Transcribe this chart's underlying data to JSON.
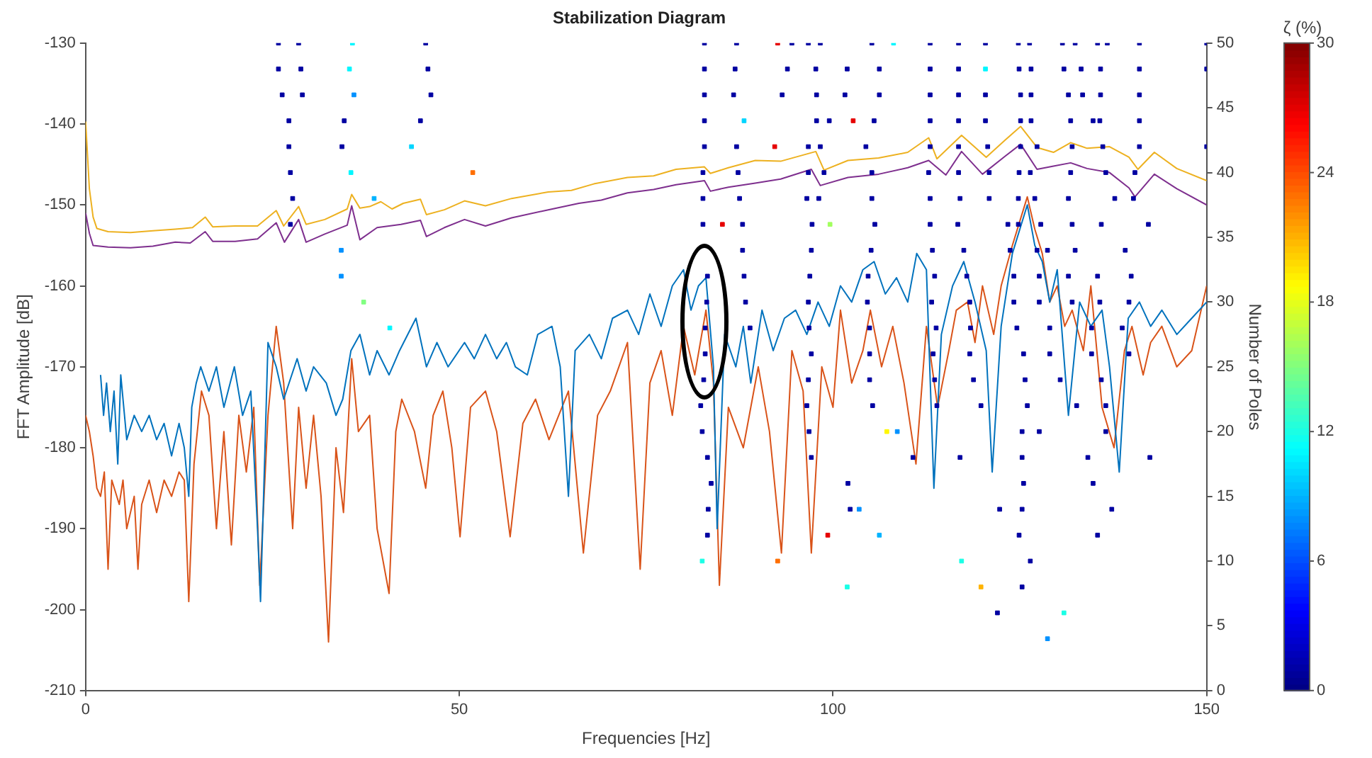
{
  "chart_data": {
    "type": "line",
    "title": "Stabilization Diagram",
    "xlabel": "Frequencies [Hz]",
    "ylabel": "FFT Amplitude [dB]",
    "y2label": "Number of Poles",
    "clabel": "ζ (%)",
    "xlim": [
      0,
      150
    ],
    "xticks": [
      0,
      50,
      100,
      150
    ],
    "ylim": [
      -210,
      -130
    ],
    "yticks": [
      -210,
      -200,
      -190,
      -180,
      -170,
      -160,
      -150,
      -140,
      -130
    ],
    "y2lim": [
      0,
      50
    ],
    "y2ticks": [
      0,
      5,
      10,
      15,
      20,
      25,
      30,
      35,
      40,
      45,
      50
    ],
    "clim": [
      0,
      30
    ],
    "cticks": [
      0,
      6,
      12,
      18,
      24,
      30
    ],
    "grid": false,
    "legend": false,
    "series": [
      {
        "color": "#edb120",
        "x": [
          0,
          0.5,
          1,
          1.5,
          3,
          6,
          9,
          12,
          14.3,
          16,
          17,
          20,
          23,
          25.5,
          26.5,
          28.5,
          29.5,
          32,
          35,
          35.6,
          36.7,
          38,
          39.5,
          41,
          42.5,
          44.8,
          45.6,
          48,
          50.7,
          53.5,
          57,
          61.9,
          65,
          68,
          72.5,
          76,
          79,
          82.8,
          83.6,
          86,
          89.6,
          93,
          97.7,
          98.8,
          102,
          106.1,
          110,
          112.8,
          113.9,
          117.2,
          120.5,
          123,
          125.1,
          127.3,
          129.5,
          131.8,
          134,
          137,
          139.6,
          140.8,
          143,
          146,
          150
        ],
        "values": [
          -139.7,
          -148,
          -151.5,
          -152.9,
          -153.3,
          -153.4,
          -153.2,
          -153,
          -152.8,
          -151.5,
          -152.7,
          -152.6,
          -152.6,
          -150.7,
          -152.6,
          -150.2,
          -152.4,
          -151.8,
          -150.5,
          -148.7,
          -150.4,
          -150.2,
          -149.6,
          -150.5,
          -149.8,
          -149.3,
          -151.2,
          -150.6,
          -149.5,
          -150.1,
          -149.2,
          -148.4,
          -148.2,
          -147.4,
          -146.6,
          -146.4,
          -145.6,
          -145.3,
          -146.1,
          -145.4,
          -144.5,
          -144.6,
          -143.4,
          -145.7,
          -144.5,
          -144.2,
          -143.5,
          -141.7,
          -144.3,
          -141.4,
          -144.1,
          -142,
          -140.3,
          -142.9,
          -143.5,
          -142.3,
          -143,
          -142.8,
          -144.1,
          -145.6,
          -143.5,
          -145.5,
          -147
        ]
      },
      {
        "color": "#7e2f8e",
        "x": [
          0,
          0.5,
          1,
          3,
          6,
          9,
          12,
          14,
          16,
          17,
          20,
          23,
          25.5,
          26.6,
          28.5,
          29.5,
          32,
          35,
          35.6,
          36.7,
          39,
          42.2,
          44.8,
          45.6,
          48,
          50.7,
          53.5,
          57,
          61.9,
          66,
          69,
          72.5,
          76,
          79,
          82.8,
          83.6,
          86,
          89.6,
          93,
          97.1,
          98.3,
          102,
          106.1,
          110,
          112.8,
          115.1,
          117.2,
          120,
          123,
          125.1,
          127.3,
          129.5,
          131.8,
          134,
          137,
          139.6,
          140.4,
          143,
          146,
          150
        ],
        "values": [
          -151,
          -153.5,
          -155,
          -155.2,
          -155.3,
          -155.1,
          -154.6,
          -154.7,
          -153.3,
          -154.5,
          -154.5,
          -154.2,
          -152.2,
          -154.6,
          -151.8,
          -154.6,
          -153.6,
          -152.5,
          -150.1,
          -154.3,
          -152.8,
          -152.4,
          -151.9,
          -153.9,
          -152.8,
          -151.8,
          -152.6,
          -151.6,
          -150.6,
          -149.8,
          -149.4,
          -148.5,
          -148.1,
          -147.5,
          -147,
          -148.3,
          -147.8,
          -147.3,
          -146.8,
          -145.6,
          -147.6,
          -146.6,
          -146.2,
          -145.4,
          -144.5,
          -146.3,
          -143.4,
          -146.2,
          -144,
          -142.5,
          -145.6,
          -145.2,
          -144.8,
          -145.5,
          -146,
          -147.9,
          -149,
          -146.2,
          -148,
          -150
        ]
      },
      {
        "color": "#0072bd",
        "x": [
          2,
          2.4,
          2.8,
          3.3,
          3.8,
          4.3,
          4.7,
          5.5,
          6.5,
          7.5,
          8.5,
          9.5,
          10.5,
          11.5,
          12.5,
          13.2,
          13.8,
          14.2,
          14.8,
          15.4,
          16.5,
          17.5,
          18.5,
          19.9,
          21,
          22.1,
          23,
          23.4,
          24,
          24.4,
          25.5,
          26.5,
          28.3,
          29.5,
          30.5,
          32.2,
          33.5,
          34.4,
          35.5,
          36.7,
          38,
          39,
          40.6,
          42,
          44.2,
          45.6,
          47,
          48.5,
          50.7,
          52,
          53.5,
          55,
          56.3,
          57.5,
          59.1,
          60.5,
          62.4,
          63.5,
          64.6,
          65.5,
          67.4,
          69,
          70.5,
          72.5,
          74,
          75.5,
          77,
          78.5,
          80,
          81,
          82,
          83,
          84,
          84.5,
          85.5,
          87,
          88,
          89,
          90.5,
          92,
          93.5,
          95,
          96.5,
          98,
          99.5,
          101,
          102.5,
          104,
          105.5,
          107,
          108.5,
          110,
          111.2,
          112.5,
          113.5,
          114.5,
          116,
          117.5,
          119,
          120.5,
          121.3,
          122.5,
          124,
          125,
          126,
          127,
          128,
          129,
          130,
          131.5,
          133,
          134.5,
          136,
          137,
          138.3,
          139.5,
          141,
          142.5,
          144,
          146,
          148,
          150
        ],
        "values": [
          -171,
          -176,
          -172,
          -178,
          -173,
          -182,
          -171,
          -179,
          -176,
          -178,
          -176,
          -179,
          -177,
          -181,
          -177,
          -180,
          -186,
          -175,
          -172,
          -170,
          -173,
          -170,
          -175,
          -170,
          -176,
          -173,
          -190,
          -199,
          -180,
          -167,
          -170,
          -174,
          -169,
          -173,
          -170,
          -172,
          -176,
          -174,
          -168,
          -166,
          -171,
          -168,
          -171,
          -168,
          -164,
          -170,
          -167,
          -170,
          -167,
          -169,
          -166,
          -169,
          -167,
          -170,
          -171,
          -166,
          -165,
          -170,
          -186,
          -168,
          -166,
          -169,
          -164,
          -163,
          -166,
          -161,
          -165,
          -160,
          -158,
          -163,
          -160,
          -159,
          -170,
          -190,
          -166,
          -170,
          -165,
          -172,
          -163,
          -168,
          -164,
          -163,
          -166,
          -162,
          -165,
          -160,
          -162,
          -158,
          -157,
          -161,
          -159,
          -162,
          -156,
          -158,
          -185,
          -166,
          -160,
          -157,
          -162,
          -168,
          -183,
          -165,
          -156,
          -153,
          -150,
          -155,
          -157,
          -162,
          -158,
          -176,
          -162,
          -165,
          -163,
          -170,
          -183,
          -164,
          -162,
          -165,
          -163,
          -166,
          -164,
          -162
        ]
      },
      {
        "color": "#d95319",
        "x": [
          0,
          0.5,
          1,
          1.5,
          2,
          2.5,
          3,
          3.5,
          4.5,
          5,
          5.5,
          6.5,
          7,
          7.5,
          8.5,
          9.5,
          10.5,
          11.5,
          12.5,
          13.2,
          13.8,
          14.5,
          15.5,
          16.5,
          17.5,
          18.5,
          19.5,
          20.5,
          21.5,
          22.5,
          23.3,
          24.4,
          25.5,
          26.5,
          27.7,
          28.5,
          29.5,
          30.5,
          31.5,
          32.5,
          33.5,
          34.5,
          35.6,
          36.5,
          38,
          39,
          40.6,
          41.5,
          42.3,
          44,
          45.5,
          46.5,
          47.8,
          49,
          50.1,
          51.5,
          53.5,
          55,
          56.8,
          58.5,
          60.2,
          62,
          64.6,
          66.6,
          68.5,
          70.2,
          72.5,
          74.2,
          75.5,
          77,
          78.5,
          80,
          81.5,
          83,
          84,
          84.8,
          86,
          88,
          90,
          91.5,
          93.1,
          94.5,
          96,
          97.1,
          98.5,
          100,
          101,
          102.5,
          104,
          105,
          106.5,
          108,
          109.5,
          111.1,
          112.5,
          114,
          115.5,
          116.5,
          118,
          119,
          120,
          121.5,
          122.5,
          124,
          125,
          126,
          127,
          128,
          129,
          130,
          131,
          132,
          133.5,
          134.5,
          136,
          137.6,
          139,
          140,
          141.5,
          142.5,
          144,
          146,
          148,
          150
        ],
        "values": [
          -176,
          -178,
          -181,
          -185,
          -186,
          -183,
          -195,
          -184,
          -187,
          -184,
          -190,
          -186,
          -195,
          -187,
          -184,
          -188,
          -184,
          -186,
          -183,
          -184,
          -199,
          -182,
          -173,
          -176,
          -190,
          -178,
          -192,
          -176,
          -183,
          -175,
          -197,
          -176,
          -165,
          -172,
          -190,
          -175,
          -185,
          -176,
          -186,
          -204,
          -180,
          -188,
          -169,
          -178,
          -176,
          -190,
          -198,
          -178,
          -174,
          -178,
          -185,
          -176,
          -173,
          -180,
          -191,
          -175,
          -173,
          -178,
          -191,
          -177,
          -174,
          -179,
          -173,
          -193,
          -176,
          -173,
          -167,
          -195,
          -172,
          -168,
          -176,
          -165,
          -171,
          -163,
          -172,
          -197,
          -175,
          -180,
          -170,
          -178,
          -193,
          -168,
          -173,
          -193,
          -170,
          -175,
          -163,
          -172,
          -168,
          -163,
          -170,
          -165,
          -172,
          -182,
          -165,
          -175,
          -168,
          -163,
          -162,
          -167,
          -160,
          -166,
          -160,
          -155,
          -152,
          -149,
          -153,
          -156,
          -162,
          -160,
          -165,
          -163,
          -168,
          -160,
          -175,
          -180,
          -168,
          -165,
          -171,
          -167,
          -165,
          -170,
          -168,
          -160
        ]
      },
      {
        "type": "scatter",
        "axis": "y2",
        "marker": "square",
        "x": [
          25.8,
          28.5,
          35.7,
          45.5,
          82.8,
          87.1,
          92.6,
          94.5,
          96.7,
          98.3,
          105.2,
          108.1,
          113.0,
          116.8,
          120.4,
          124.8,
          126.3,
          130.7,
          132.4,
          135.4,
          136.7,
          141.0,
          150
        ],
        "values": [
          50,
          50,
          50,
          50,
          50,
          50,
          50,
          50,
          50,
          50,
          50,
          50,
          50,
          50,
          50,
          50,
          50,
          50,
          50,
          50,
          50,
          50,
          50
        ],
        "colors": [
          "#0000a1",
          "#0000a1",
          "#00f7ff",
          "#0000a1",
          "#0000a1",
          "#0000a1",
          "#e60000",
          "#0000a1",
          "#0000a1",
          "#0000a1",
          "#0000a1",
          "#00f7ff",
          "#0000a1",
          "#0000a1",
          "#0000a1",
          "#0000a1",
          "#0000a1",
          "#0000a1",
          "#0000a1",
          "#0000a1",
          "#0000a1",
          "#0000a1",
          "#0000a1"
        ],
        "cvalues": [
          1,
          1,
          11,
          1,
          1,
          1,
          27,
          1,
          1,
          1,
          1,
          11,
          1,
          1,
          1,
          1,
          1,
          1,
          1,
          1,
          1,
          1,
          1
        ]
      },
      {
        "type": "scatter",
        "axis": "y2",
        "marker": "square",
        "x": [
          25.8,
          28.8,
          35.3,
          45.8,
          82.8,
          86.9,
          93.9,
          97.7,
          101.9,
          106.2,
          113.0,
          116.8,
          120.4,
          124.9,
          126.5,
          130.9,
          133.2,
          135.8,
          141.0,
          150
        ],
        "values": [
          48,
          48,
          48,
          48,
          48,
          48,
          48,
          48,
          48,
          48,
          48,
          48,
          48,
          48,
          48,
          48,
          48,
          48,
          48,
          48
        ],
        "colors": [
          "#0000a1",
          "#0000a1",
          "#00f7ff",
          "#0000a1",
          "#0000a1",
          "#0000a1",
          "#0000a1",
          "#0000a1",
          "#0000a1",
          "#0000a1",
          "#0000a1",
          "#0000a1",
          "#00f7ff",
          "#0000a1",
          "#0000a1",
          "#0000a1",
          "#0000a1",
          "#0000a1",
          "#0000a1",
          "#0000a1"
        ],
        "cvalues": [
          1,
          1,
          11,
          1,
          1,
          1,
          1,
          1,
          1,
          1,
          1,
          1,
          11,
          1,
          1,
          1,
          1,
          1,
          1,
          1
        ]
      },
      {
        "type": "scatter",
        "axis": "y2",
        "marker": "square",
        "x": [
          26.3,
          29.0,
          35.9,
          46.2,
          82.8,
          86.7,
          93.2,
          97.8,
          101.6,
          106.2,
          113.0,
          116.8,
          120.4,
          125.1,
          126.5,
          131.5,
          133.4,
          135.8,
          141.0
        ],
        "values": [
          46,
          46,
          46,
          46,
          46,
          46,
          46,
          46,
          46,
          46,
          46,
          46,
          46,
          46,
          46,
          46,
          46,
          46,
          46
        ],
        "colors": [
          "#0000a1",
          "#0000a1",
          "#0091ff",
          "#0000a1",
          "#0000a1",
          "#0000a1",
          "#0000a1",
          "#0000a1",
          "#0000a1",
          "#0000a1",
          "#0000a1",
          "#0000a1",
          "#0000a1",
          "#0000a1",
          "#0000a1",
          "#0000a1",
          "#0000a1",
          "#0000a1",
          "#0000a1"
        ],
        "cvalues": [
          1,
          1,
          8,
          1,
          1,
          1,
          1,
          1,
          1,
          1,
          1,
          1,
          1,
          1,
          1,
          1,
          1,
          1,
          1
        ]
      },
      {
        "type": "scatter",
        "axis": "y2",
        "marker": "square",
        "x": [
          27.2,
          34.6,
          44.8,
          82.8,
          88.1,
          97.8,
          99.5,
          102.7,
          105.5,
          113.0,
          116.8,
          120.4,
          125.1,
          126.5,
          131.8,
          134.8,
          135.7,
          141.0
        ],
        "values": [
          44,
          44,
          44,
          44,
          44,
          44,
          44,
          44,
          44,
          44,
          44,
          44,
          44,
          44,
          44,
          44,
          44,
          44
        ],
        "colors": [
          "#0000a1",
          "#0000a1",
          "#0000a1",
          "#0000a1",
          "#00d5ff",
          "#0000a1",
          "#0000a1",
          "#e60000",
          "#0000a1",
          "#0000a1",
          "#0000a1",
          "#0000a1",
          "#0000a1",
          "#0000a1",
          "#0000a1",
          "#0000a1",
          "#0000a1",
          "#0000a1"
        ],
        "cvalues": [
          1,
          1,
          1,
          1,
          10,
          1,
          1,
          27,
          1,
          1,
          1,
          1,
          1,
          1,
          1,
          1,
          1,
          1
        ]
      },
      {
        "type": "scatter",
        "axis": "y2",
        "marker": "square",
        "x": [
          27.2,
          34.3,
          43.6,
          82.8,
          87.1,
          92.2,
          96.7,
          98.3,
          104.4,
          113.0,
          116.8,
          120.7,
          125.1,
          127.3,
          132.0,
          136.1,
          141.0,
          150
        ],
        "values": [
          42,
          42,
          42,
          42,
          42,
          42,
          42,
          42,
          42,
          42,
          42,
          42,
          42,
          42,
          42,
          42,
          42,
          42
        ],
        "colors": [
          "#0000a1",
          "#0000a1",
          "#00d5ff",
          "#0000a1",
          "#0000a1",
          "#e60000",
          "#0000a1",
          "#0000a1",
          "#0000a1",
          "#0000a1",
          "#0000a1",
          "#0000a1",
          "#0000a1",
          "#0000a1",
          "#0000a1",
          "#0000a1",
          "#0000a1",
          "#0000a1"
        ],
        "cvalues": [
          1,
          1,
          10,
          1,
          1,
          27,
          1,
          1,
          1,
          1,
          1,
          1,
          1,
          1,
          1,
          1,
          1,
          1
        ]
      },
      {
        "type": "scatter",
        "axis": "y2",
        "marker": "square",
        "x": [
          27.4,
          35.5,
          51.8,
          82.6,
          87.3,
          96.7,
          98.8,
          105.2,
          112.8,
          116.8,
          120.9,
          124.9,
          126.4,
          131.8,
          136.5,
          140.4
        ],
        "values": [
          40,
          40,
          40,
          40,
          40,
          40,
          40,
          40,
          40,
          40,
          40,
          40,
          40,
          40,
          40,
          40
        ],
        "colors": [
          "#0000a1",
          "#00f7ff",
          "#ff6e00",
          "#0000a1",
          "#0000a1",
          "#0000a1",
          "#0000a1",
          "#0000a1",
          "#0000a1",
          "#0000a1",
          "#0000a1",
          "#0000a1",
          "#0000a1",
          "#0000a1",
          "#0000a1",
          "#0000a1"
        ],
        "cvalues": [
          1,
          11,
          23,
          1,
          1,
          1,
          1,
          1,
          1,
          1,
          1,
          1,
          1,
          1,
          1,
          1
        ]
      },
      {
        "type": "scatter",
        "axis": "y2",
        "marker": "square",
        "x": [
          27.7,
          38.6,
          82.6,
          87.5,
          96.5,
          98.1,
          105.2,
          113.0,
          117.0,
          120.9,
          124.8,
          127.0,
          131.5,
          137.7,
          140.2
        ],
        "values": [
          38,
          38,
          38,
          38,
          38,
          38,
          38,
          38,
          38,
          38,
          38,
          38,
          38,
          38,
          38
        ],
        "colors": [
          "#0000a1",
          "#00b3ff",
          "#0000a1",
          "#0000a1",
          "#0000a1",
          "#0000a1",
          "#0000a1",
          "#0000a1",
          "#0000a1",
          "#0000a1",
          "#0000a1",
          "#0000a1",
          "#0000a1",
          "#0000a1",
          "#0000a1"
        ],
        "cvalues": [
          1,
          9,
          1,
          1,
          1,
          1,
          1,
          1,
          1,
          1,
          1,
          1,
          1,
          1,
          1
        ]
      },
      {
        "type": "scatter",
        "axis": "y2",
        "marker": "square",
        "x": [
          27.4,
          82.6,
          85.2,
          87.9,
          97.2,
          99.6,
          105.6,
          113.0,
          116.7,
          123.4,
          124.8,
          127.8,
          132.0,
          135.9,
          142.2
        ],
        "values": [
          36,
          36,
          36,
          36,
          36,
          36,
          36,
          36,
          36,
          36,
          36,
          36,
          36,
          36,
          36
        ],
        "colors": [
          "#0000a1",
          "#0000a1",
          "#e60000",
          "#0000a1",
          "#0000a1",
          "#a1ff5e",
          "#0000a1",
          "#0000a1",
          "#0000a1",
          "#0000a1",
          "#0000a1",
          "#0000a1",
          "#0000a1",
          "#0000a1",
          "#0000a1"
        ],
        "cvalues": [
          1,
          1,
          27,
          1,
          1,
          16,
          1,
          1,
          1,
          1,
          1,
          1,
          1,
          1,
          1
        ]
      },
      {
        "type": "scatter",
        "axis": "y2",
        "marker": "square",
        "x": [
          34.2,
          87.9,
          97.1,
          105.1,
          113.3,
          117.5,
          123.7,
          127.3,
          128.7,
          132.4,
          139.1
        ],
        "values": [
          34,
          34,
          34,
          34,
          34,
          34,
          34,
          34,
          34,
          34,
          34
        ],
        "colors": [
          "#0091ff",
          "#0000a1",
          "#0000a1",
          "#0000a1",
          "#0000a1",
          "#0000a1",
          "#0000a1",
          "#0000a1",
          "#0000a1",
          "#0000a1",
          "#0000a1"
        ],
        "cvalues": [
          8,
          1,
          1,
          1,
          1,
          1,
          1,
          1,
          1,
          1,
          1
        ]
      },
      {
        "type": "scatter",
        "axis": "y2",
        "marker": "square",
        "x": [
          34.2,
          83.2,
          88.1,
          96.9,
          104.7,
          113.6,
          117.9,
          124.2,
          127.6,
          131.5,
          135.4,
          139.9
        ],
        "values": [
          32,
          32,
          32,
          32,
          32,
          32,
          32,
          32,
          32,
          32,
          32,
          32
        ],
        "colors": [
          "#0091ff",
          "#0000a1",
          "#0000a1",
          "#0000a1",
          "#0000a1",
          "#0000a1",
          "#0000a1",
          "#0000a1",
          "#0000a1",
          "#0000a1",
          "#0000a1",
          "#0000a1"
        ],
        "cvalues": [
          8,
          1,
          1,
          1,
          1,
          1,
          1,
          1,
          1,
          1,
          1,
          1
        ]
      },
      {
        "type": "scatter",
        "axis": "y2",
        "marker": "square",
        "x": [
          37.2,
          83.1,
          88.3,
          96.7,
          104.6,
          113.2,
          118.3,
          124.2,
          127.6,
          132.0,
          135.7,
          139.6
        ],
        "values": [
          30,
          30,
          30,
          30,
          30,
          30,
          30,
          30,
          30,
          30,
          30,
          30
        ],
        "colors": [
          "#80ff80",
          "#0000a1",
          "#0000a1",
          "#0000a1",
          "#0000a1",
          "#0000a1",
          "#0000a1",
          "#0000a1",
          "#0000a1",
          "#0000a1",
          "#0000a1",
          "#0000a1"
        ],
        "cvalues": [
          15,
          1,
          1,
          1,
          1,
          1,
          1,
          1,
          1,
          1,
          1,
          1
        ]
      },
      {
        "type": "scatter",
        "axis": "y2",
        "marker": "square",
        "x": [
          40.7,
          82.9,
          88.9,
          96.8,
          104.9,
          113.8,
          118.4,
          124.6,
          129.0,
          134.6,
          138.7
        ],
        "values": [
          28,
          28,
          28,
          28,
          28,
          28,
          28,
          28,
          28,
          28,
          28
        ],
        "colors": [
          "#00f7ff",
          "#0000a1",
          "#0000a1",
          "#0000a1",
          "#0000a1",
          "#0000a1",
          "#0000a1",
          "#0000a1",
          "#0000a1",
          "#0000a1",
          "#0000a1"
        ],
        "cvalues": [
          11,
          1,
          1,
          1,
          1,
          1,
          1,
          1,
          1,
          1,
          1
        ]
      },
      {
        "type": "scatter",
        "axis": "y2",
        "marker": "square",
        "x": [
          82.9,
          97.1,
          104.9,
          113.4,
          118.3,
          125.5,
          129.0,
          134.6,
          139.6
        ],
        "values": [
          26,
          26,
          26,
          26,
          26,
          26,
          26,
          26,
          26
        ],
        "cvalues": [
          1,
          1,
          1,
          1,
          1,
          1,
          1,
          1,
          1
        ]
      },
      {
        "type": "scatter",
        "axis": "y2",
        "marker": "square",
        "x": [
          82.7,
          96.7,
          104.9,
          113.6,
          118.8,
          125.7,
          130.4,
          135.9
        ],
        "values": [
          24,
          24,
          24,
          24,
          24,
          24,
          24,
          24
        ],
        "cvalues": [
          1,
          1,
          1,
          1,
          1,
          1,
          1,
          1
        ]
      },
      {
        "type": "scatter",
        "axis": "y2",
        "marker": "square",
        "x": [
          82.3,
          96.5,
          105.3,
          113.9,
          119.8,
          126.0,
          132.6,
          136.5
        ],
        "values": [
          22,
          22,
          22,
          22,
          22,
          22,
          22,
          22
        ],
        "cvalues": [
          1,
          1,
          1,
          1,
          1,
          1,
          1,
          1
        ]
      },
      {
        "type": "scatter",
        "axis": "y2",
        "marker": "square",
        "x": [
          82.5,
          96.8,
          107.2,
          108.6,
          125.3,
          127.6,
          136.5
        ],
        "values": [
          20,
          20,
          20,
          20,
          20,
          20,
          20
        ],
        "colors": [
          "#0000a1",
          "#0000a1",
          "#fff700",
          "#0091ff",
          "#0000a1",
          "#0000a1",
          "#0000a1"
        ],
        "cvalues": [
          1,
          1,
          19,
          8,
          1,
          1,
          1
        ]
      },
      {
        "type": "scatter",
        "axis": "y2",
        "marker": "square",
        "x": [
          83.2,
          97.1,
          110.7,
          117.0,
          125.3,
          134.1,
          142.4
        ],
        "values": [
          18,
          18,
          18,
          18,
          18,
          18,
          18
        ],
        "cvalues": [
          1,
          1,
          1,
          1,
          1,
          1,
          1
        ]
      },
      {
        "type": "scatter",
        "axis": "y2",
        "marker": "square",
        "x": [
          83.7,
          102.0,
          125.5,
          134.8
        ],
        "values": [
          16,
          16,
          16,
          16
        ],
        "cvalues": [
          1,
          1,
          1,
          1
        ]
      },
      {
        "type": "scatter",
        "axis": "y2",
        "marker": "square",
        "x": [
          83.3,
          102.3,
          103.5,
          122.3,
          125.3,
          137.3
        ],
        "values": [
          14,
          14,
          14,
          14,
          14,
          14
        ],
        "colors": [
          "#0000a1",
          "#0000a1",
          "#0091ff",
          "#0000a1",
          "#0000a1",
          "#0000a1"
        ],
        "cvalues": [
          1,
          1,
          8,
          1,
          1,
          1
        ]
      },
      {
        "type": "scatter",
        "axis": "y2",
        "marker": "square",
        "x": [
          83.2,
          99.3,
          106.2,
          124.9,
          135.4
        ],
        "values": [
          12,
          12,
          12,
          12,
          12
        ],
        "colors": [
          "#0000a1",
          "#e60000",
          "#00b3ff",
          "#0000a1",
          "#0000a1"
        ],
        "cvalues": [
          1,
          27,
          9,
          1,
          1
        ]
      },
      {
        "type": "scatter",
        "axis": "y2",
        "marker": "square",
        "x": [
          82.5,
          92.6,
          117.2,
          126.4
        ],
        "values": [
          10,
          10,
          10,
          10
        ],
        "colors": [
          "#1affe6",
          "#ff6e00",
          "#1affe6",
          "#0000a1"
        ],
        "cvalues": [
          12,
          23,
          12,
          1
        ]
      },
      {
        "type": "scatter",
        "axis": "y2",
        "marker": "square",
        "x": [
          101.9,
          119.8,
          125.3
        ],
        "values": [
          8,
          8,
          8
        ],
        "colors": [
          "#1affe6",
          "#ffb300",
          "#0000a1"
        ],
        "cvalues": [
          12,
          21,
          1
        ]
      },
      {
        "type": "scatter",
        "axis": "y2",
        "marker": "square",
        "x": [
          122.0,
          130.9
        ],
        "values": [
          6,
          6
        ],
        "colors": [
          "#0000a1",
          "#1affe6"
        ],
        "cvalues": [
          1,
          12
        ]
      },
      {
        "type": "scatter",
        "axis": "y2",
        "marker": "square",
        "x": [
          128.7
        ],
        "values": [
          4
        ],
        "colors": [
          "#0091ff"
        ],
        "cvalues": [
          8
        ]
      }
    ]
  }
}
